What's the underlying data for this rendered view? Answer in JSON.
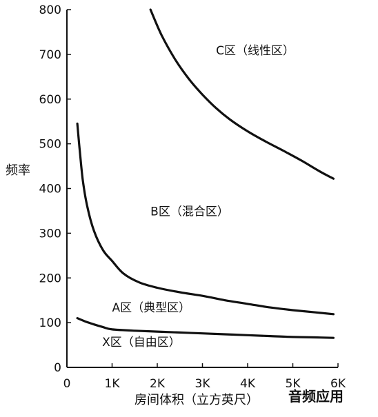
{
  "chart_data": {
    "type": "line",
    "title": "",
    "xlabel": "房间体积（立方英尺）",
    "ylabel": "频率",
    "xlim": [
      0,
      6000
    ],
    "ylim": [
      0,
      800
    ],
    "x_tick_labels": [
      "0",
      "1K",
      "2K",
      "3K",
      "4K",
      "5K",
      "6K"
    ],
    "x_tick_values": [
      0,
      1000,
      2000,
      3000,
      4000,
      5000,
      6000
    ],
    "y_tick_labels": [
      "0",
      "100",
      "200",
      "300",
      "400",
      "500",
      "600",
      "700",
      "800"
    ],
    "y_tick_values": [
      0,
      100,
      200,
      300,
      400,
      500,
      600,
      700,
      800
    ],
    "grid": false,
    "series": [
      {
        "x": [
          1850,
          2100,
          2400,
          2700,
          3000,
          3300,
          3600,
          4000,
          4400,
          4800,
          5200,
          5600,
          5900
        ],
        "y": [
          800,
          742,
          688,
          645,
          610,
          580,
          555,
          528,
          505,
          484,
          462,
          438,
          422
        ]
      },
      {
        "x": [
          230,
          280,
          350,
          450,
          600,
          800,
          1000,
          1250,
          1600,
          2000,
          2500,
          3000,
          3500,
          4000,
          4500,
          5000,
          5500,
          5900
        ],
        "y": [
          545,
          490,
          420,
          360,
          305,
          262,
          238,
          210,
          190,
          178,
          168,
          160,
          150,
          142,
          134,
          128,
          123,
          119
        ]
      },
      {
        "x": [
          230,
          400,
          600,
          800,
          1000,
          1500,
          2000,
          2500,
          3000,
          3500,
          4000,
          4500,
          5000,
          5500,
          5900
        ],
        "y": [
          110,
          103,
          96,
          90,
          85,
          82,
          80,
          78,
          76,
          74,
          72,
          70,
          68,
          67,
          66
        ]
      }
    ],
    "annotations": [
      {
        "text": "C区（线性区）",
        "x": 3300,
        "y": 700
      },
      {
        "text": "B区（混合区）",
        "x": 1850,
        "y": 340
      },
      {
        "text": "A区（典型区）",
        "x": 1000,
        "y": 125
      },
      {
        "text": "X区（自由区）",
        "x": 780,
        "y": 48
      }
    ]
  },
  "watermark": "音频应用",
  "colors": {
    "line": "#111111",
    "axis": "#111111",
    "background": "#ffffff"
  }
}
